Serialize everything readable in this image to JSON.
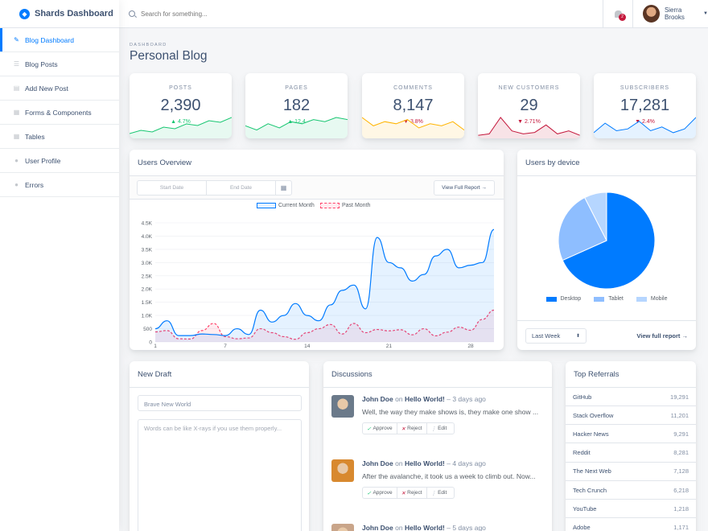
{
  "brand": {
    "name": "Shards Dashboard"
  },
  "sidebar": {
    "items": [
      {
        "label": "Blog Dashboard",
        "icon": "pencil-icon"
      },
      {
        "label": "Blog Posts",
        "icon": "list-icon"
      },
      {
        "label": "Add New Post",
        "icon": "note-icon"
      },
      {
        "label": "Forms & Components",
        "icon": "view-module-icon"
      },
      {
        "label": "Tables",
        "icon": "table-icon"
      },
      {
        "label": "User Profile",
        "icon": "person-icon"
      },
      {
        "label": "Errors",
        "icon": "error-icon"
      }
    ]
  },
  "topbar": {
    "search_placeholder": "Search for something...",
    "notification_count": "2",
    "user_name": "Sierra Brooks"
  },
  "page": {
    "subtitle": "DASHBOARD",
    "title": "Personal Blog"
  },
  "stats": [
    {
      "label": "POSTS",
      "value": "2,390",
      "change": "4.7%",
      "direction": "up",
      "color": "#17c671",
      "fill": "rgba(23,198,113,0.1)",
      "trend": [
        3,
        5,
        4,
        7,
        6,
        9,
        8,
        11,
        10,
        13
      ]
    },
    {
      "label": "PAGES",
      "value": "182",
      "change": "12.4",
      "direction": "up",
      "color": "#17c671",
      "fill": "rgba(23,198,113,0.1)",
      "trend": [
        6,
        4,
        7,
        5,
        8,
        7,
        9,
        8,
        10,
        9
      ]
    },
    {
      "label": "COMMENTS",
      "value": "8,147",
      "change": "3.8%",
      "direction": "down",
      "color": "#ffb400",
      "fill": "rgba(255,180,0,0.1)",
      "trend": [
        10,
        6,
        8,
        7,
        9,
        5,
        7,
        6,
        8,
        4
      ]
    },
    {
      "label": "NEW CUSTOMERS",
      "value": "29",
      "change": "2.71%",
      "direction": "down",
      "color": "#c4183c",
      "fill": "rgba(196,24,60,0.12)",
      "trend": [
        2,
        3,
        14,
        5,
        3,
        4,
        9,
        3,
        5,
        2
      ]
    },
    {
      "label": "SUBSCRIBERS",
      "value": "17,281",
      "change": "2.4%",
      "direction": "down",
      "color": "#007bff",
      "fill": "rgba(0,123,255,0.1)",
      "trend": [
        3,
        8,
        4,
        5,
        9,
        4,
        6,
        3,
        5,
        11
      ]
    }
  ],
  "overview": {
    "title": "Users Overview",
    "start_placeholder": "Start Date",
    "end_placeholder": "End Date",
    "report_button": "View Full Report →"
  },
  "chart_data": {
    "type": "line",
    "x": [
      1,
      2,
      3,
      4,
      5,
      6,
      7,
      8,
      9,
      10,
      11,
      12,
      13,
      14,
      15,
      16,
      17,
      18,
      19,
      20,
      21,
      22,
      23,
      24,
      25,
      26,
      27,
      28,
      29,
      30
    ],
    "x_ticks": [
      "1",
      "7",
      "14",
      "21",
      "28"
    ],
    "y_ticks": [
      "4.5K",
      "4.0K",
      "3.5K",
      "3.0K",
      "2.5K",
      "2.0K",
      "1.5K",
      "1.0K",
      "500",
      "0"
    ],
    "ylim": [
      0,
      4500
    ],
    "series": [
      {
        "name": "Current Month",
        "color": "#007bff",
        "fill": "rgba(0,123,255,0.1)",
        "values": [
          500,
          800,
          240,
          240,
          300,
          280,
          240,
          500,
          280,
          1200,
          750,
          1000,
          1450,
          1000,
          800,
          1400,
          1950,
          2150,
          1250,
          3950,
          3000,
          2800,
          2300,
          2550,
          3250,
          3500,
          2800,
          2900,
          3000,
          4250
        ]
      },
      {
        "name": "Past Month",
        "color": "#ff4169",
        "fill": "rgba(255,65,105,0.1)",
        "values": [
          380,
          430,
          120,
          110,
          430,
          700,
          200,
          120,
          150,
          500,
          350,
          200,
          100,
          350,
          500,
          660,
          300,
          700,
          350,
          470,
          420,
          460,
          270,
          500,
          230,
          370,
          560,
          440,
          850,
          1200
        ]
      }
    ]
  },
  "device": {
    "title": "Users by device",
    "chart_data": {
      "type": "pie",
      "labels": [
        "Desktop",
        "Tablet",
        "Mobile"
      ],
      "values": [
        68.3,
        24.2,
        7.5
      ],
      "colors": [
        "#007bff",
        "#8ebeff",
        "#b6d6ff"
      ]
    },
    "select_value": "Last Week",
    "report_link": "View full report →"
  },
  "draft": {
    "title": "New Draft",
    "title_placeholder": "Brave New World",
    "body_placeholder": "Words can be like X-rays if you use them properly..."
  },
  "discussions": {
    "title": "Discussions",
    "items": [
      {
        "author": "John Doe",
        "on": "on",
        "post": "Hello World!",
        "time": "– 3 days ago",
        "text": "Well, the way they make shows is, they make one show ...",
        "avatar": "#6b7a8a"
      },
      {
        "author": "John Doe",
        "on": "on",
        "post": "Hello World!",
        "time": "– 4 days ago",
        "text": "After the avalanche, it took us a week to climb out. Now...",
        "avatar": "#d8892f"
      },
      {
        "author": "John Doe",
        "on": "on",
        "post": "Hello World!",
        "time": "– 5 days ago",
        "text": "",
        "avatar": "#c9a58a"
      }
    ],
    "approve": "Approve",
    "reject": "Reject",
    "edit": "Edit"
  },
  "referrals": {
    "title": "Top Referrals",
    "rows": [
      {
        "name": "GitHub",
        "value": "19,291"
      },
      {
        "name": "Stack Overflow",
        "value": "11,201"
      },
      {
        "name": "Hacker News",
        "value": "9,291"
      },
      {
        "name": "Reddit",
        "value": "8,281"
      },
      {
        "name": "The Next Web",
        "value": "7,128"
      },
      {
        "name": "Tech Crunch",
        "value": "6,218"
      },
      {
        "name": "YouTube",
        "value": "1,218"
      },
      {
        "name": "Adobe",
        "value": "1,171"
      }
    ]
  }
}
